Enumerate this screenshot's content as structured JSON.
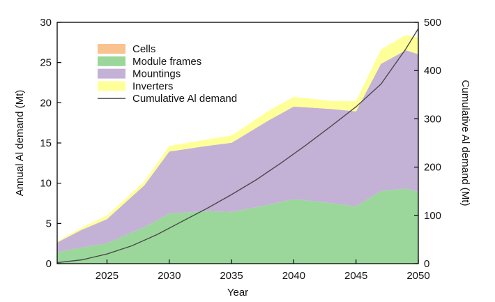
{
  "chart_data": {
    "type": "area",
    "xlabel": "Year",
    "ylabel_left": "Annual Al demand (Mt)",
    "ylabel_right": "Cumulative Al demand (Mt)",
    "xlim": [
      2021,
      2050
    ],
    "ylim_left": [
      0,
      30
    ],
    "ylim_right": [
      0,
      500
    ],
    "x_ticks": [
      2025,
      2030,
      2035,
      2040,
      2045,
      2050
    ],
    "y_left_ticks": [
      0,
      5,
      10,
      15,
      20,
      25,
      30
    ],
    "y_right_ticks": [
      0,
      100,
      200,
      300,
      400,
      500
    ],
    "stacked": true,
    "x": [
      2021,
      2023,
      2025,
      2028,
      2030,
      2033,
      2035,
      2038,
      2040,
      2043,
      2045,
      2047,
      2049,
      2050
    ],
    "series": [
      {
        "name": "Cells",
        "color": "#f9c38f",
        "values": [
          0.02,
          0.02,
          0.03,
          0.03,
          0.03,
          0.03,
          0.03,
          0.03,
          0.03,
          0.03,
          0.03,
          0.03,
          0.03,
          0.03
        ]
      },
      {
        "name": "Module frames",
        "color": "#9bd79b",
        "values": [
          1.4,
          2.0,
          2.5,
          4.5,
          6.2,
          6.5,
          6.4,
          7.3,
          8.0,
          7.5,
          7.1,
          9.0,
          9.3,
          8.9
        ]
      },
      {
        "name": "Mountings",
        "color": "#c4b1d6",
        "values": [
          1.2,
          2.2,
          3.0,
          5.2,
          7.7,
          8.1,
          8.6,
          10.5,
          11.5,
          11.7,
          11.8,
          15.8,
          17.2,
          17.1
        ]
      },
      {
        "name": "Inverters",
        "color": "#ffff99",
        "values": [
          0.15,
          0.3,
          0.45,
          0.5,
          0.7,
          0.8,
          0.9,
          1.2,
          1.2,
          1.0,
          1.3,
          1.8,
          1.9,
          2.1
        ]
      }
    ],
    "line_series": {
      "name": "Cumulative Al demand",
      "axis": "right",
      "color": "#4a4a4a",
      "x": [
        2021,
        2023,
        2025,
        2027,
        2029,
        2031,
        2033,
        2035,
        2037,
        2039,
        2041,
        2043,
        2045,
        2047,
        2049,
        2050
      ],
      "values": [
        2,
        8,
        20,
        37,
        60,
        87,
        114,
        143,
        174,
        209,
        246,
        285,
        325,
        372,
        445,
        487
      ]
    },
    "legend": {
      "position": "top-left",
      "entries": [
        "Cells",
        "Module frames",
        "Mountings",
        "Inverters",
        "Cumulative Al demand"
      ]
    },
    "grid": false
  }
}
